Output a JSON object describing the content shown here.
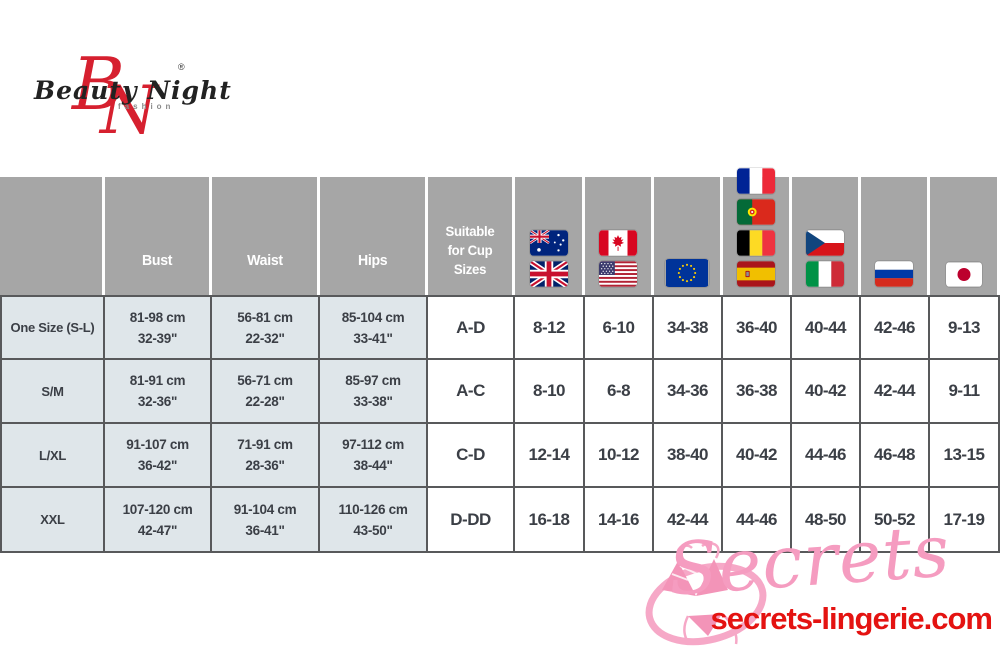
{
  "logo": {
    "brand": "Beauty Night",
    "monogram_b": "B",
    "monogram_n": "N",
    "registered": "®",
    "tagline": "fashion"
  },
  "table": {
    "header": {
      "size_label": "",
      "bust": "Bust",
      "waist": "Waist",
      "hips": "Hips",
      "cup": "Suitable for Cup Sizes",
      "flag_columns": [
        {
          "countries": [
            "Australia",
            "United Kingdom"
          ]
        },
        {
          "countries": [
            "Canada",
            "United States"
          ]
        },
        {
          "countries": [
            "European Union"
          ]
        },
        {
          "countries": [
            "France",
            "Portugal",
            "Belgium",
            "Spain"
          ]
        },
        {
          "countries": [
            "Czech Republic",
            "Italy"
          ]
        },
        {
          "countries": [
            "Russia"
          ]
        },
        {
          "countries": [
            "Japan"
          ]
        }
      ]
    },
    "rows": [
      {
        "label": "One Size (S-L)",
        "measurements": [
          [
            "81-98 cm",
            "32-39\""
          ],
          [
            "56-81 cm",
            "22-32\""
          ],
          [
            "85-104 cm",
            "33-41\""
          ]
        ],
        "cup": "A-D",
        "sizes": [
          "8-12",
          "6-10",
          "34-38",
          "36-40",
          "40-44",
          "42-46",
          "9-13"
        ]
      },
      {
        "label": "S/M",
        "measurements": [
          [
            "81-91 cm",
            "32-36\""
          ],
          [
            "56-71 cm",
            "22-28\""
          ],
          [
            "85-97 cm",
            "33-38\""
          ]
        ],
        "cup": "A-C",
        "sizes": [
          "8-10",
          "6-8",
          "34-36",
          "36-38",
          "40-42",
          "42-44",
          "9-11"
        ]
      },
      {
        "label": "L/XL",
        "measurements": [
          [
            "91-107 cm",
            "36-42\""
          ],
          [
            "71-91 cm",
            "28-36\""
          ],
          [
            "97-112 cm",
            "38-44\""
          ]
        ],
        "cup": "C-D",
        "sizes": [
          "12-14",
          "10-12",
          "38-40",
          "40-42",
          "44-46",
          "46-48",
          "13-15"
        ]
      },
      {
        "label": "XXL",
        "measurements": [
          [
            "107-120 cm",
            "42-47\""
          ],
          [
            "91-104 cm",
            "36-41\""
          ],
          [
            "110-126 cm",
            "43-50\""
          ]
        ],
        "cup": "D-DD",
        "sizes": [
          "16-18",
          "14-16",
          "42-44",
          "44-46",
          "48-50",
          "50-52",
          "17-19"
        ]
      }
    ]
  },
  "watermark": {
    "script": "Secrets",
    "url": "secrets-lingerie.com"
  },
  "colors": {
    "header_bg": "#a6a6a6",
    "row_label_bg": "#dfe6ea",
    "border": "#58595b",
    "text": "#3b3f46",
    "logo_red": "#d6202f",
    "watermark_pink": "#f59cc0",
    "url_red": "#e41311"
  }
}
